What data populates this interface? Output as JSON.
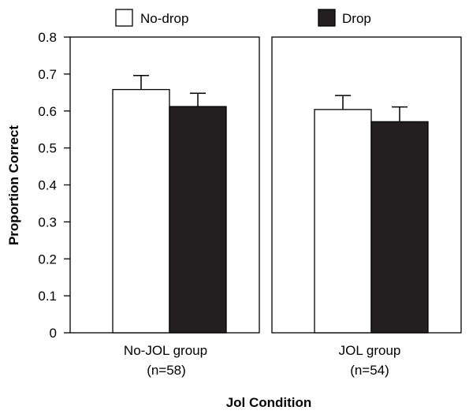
{
  "colors": {
    "no_drop": "#ffffff",
    "drop": "#231f20",
    "stroke": "#000000"
  },
  "chart_data": {
    "type": "bar",
    "title": "",
    "xlabel": "Jol Condition",
    "ylabel": "Proportion Correct",
    "ylim": [
      0,
      0.8
    ],
    "yticks": [
      "0",
      "0.1",
      "0.2",
      "0.3",
      "0.4",
      "0.5",
      "0.6",
      "0.7",
      "0.8"
    ],
    "categories": [
      {
        "line1": "No-JOL group",
        "line2": "(n=58)"
      },
      {
        "line1": "JOL group",
        "line2": "(n=54)"
      }
    ],
    "series": [
      {
        "name": "No-drop",
        "values": [
          0.658,
          0.604
        ],
        "errors": [
          0.038,
          0.038
        ]
      },
      {
        "name": "Drop",
        "values": [
          0.612,
          0.571
        ],
        "errors": [
          0.036,
          0.04
        ]
      }
    ],
    "legend": "top"
  }
}
